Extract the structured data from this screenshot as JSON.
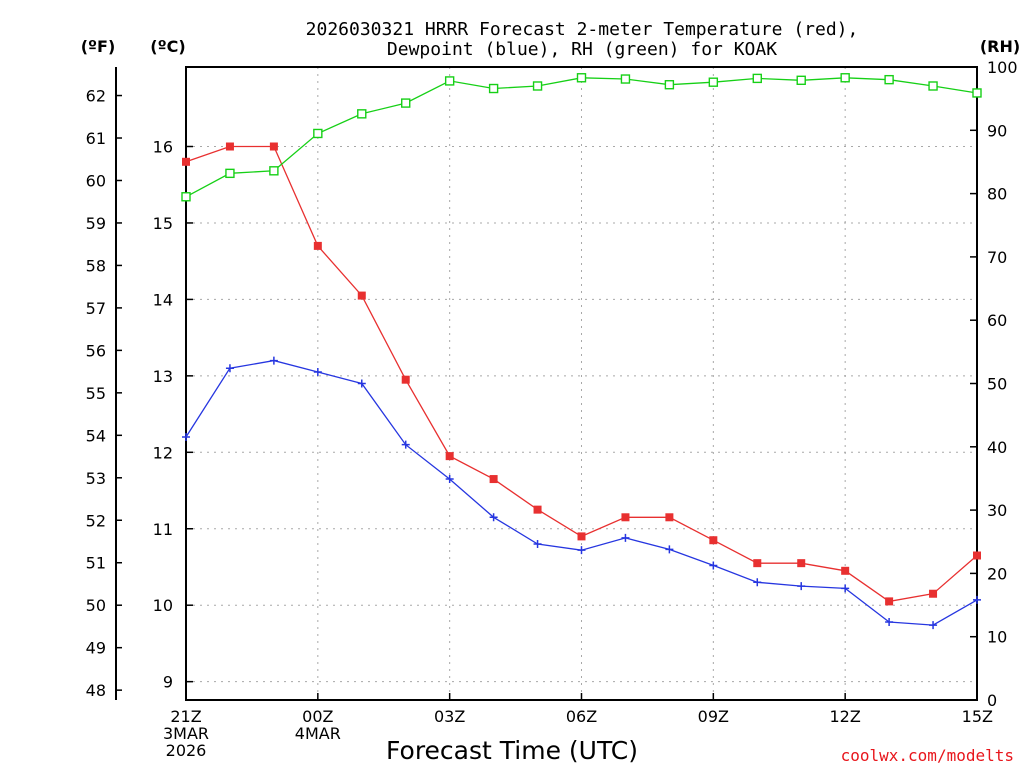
{
  "chart_data": {
    "type": "line",
    "title_line1": "2026030321 HRRR Forecast 2-meter Temperature (red),",
    "title_line2": "Dewpoint (blue), RH (green) for KOAK",
    "xlabel": "Forecast Time (UTC)",
    "credit": "coolwx.com/modelts",
    "left_outer_unit": "(ºF)",
    "left_inner_unit": "(ºC)",
    "right_unit": "(RH)",
    "x_range": [
      0,
      18
    ],
    "celsius_range": [
      8.76,
      17.04
    ],
    "rh_range": [
      0,
      100
    ],
    "fahrenheit_ticks": [
      "48",
      "49",
      "50",
      "51",
      "52",
      "53",
      "54",
      "55",
      "56",
      "57",
      "58",
      "59",
      "60",
      "61",
      "62"
    ],
    "celsius_ticks": [
      "9",
      "10",
      "11",
      "12",
      "13",
      "14",
      "15",
      "16"
    ],
    "rh_ticks": [
      "0",
      "10",
      "20",
      "30",
      "40",
      "50",
      "60",
      "70",
      "80",
      "90",
      "100"
    ],
    "x_ticks": [
      {
        "pos": 0,
        "lines": [
          "21Z",
          "3MAR",
          "2026"
        ]
      },
      {
        "pos": 3,
        "lines": [
          "00Z",
          "4MAR"
        ]
      },
      {
        "pos": 6,
        "lines": [
          "03Z"
        ]
      },
      {
        "pos": 9,
        "lines": [
          "06Z"
        ]
      },
      {
        "pos": 12,
        "lines": [
          "09Z"
        ]
      },
      {
        "pos": 15,
        "lines": [
          "12Z"
        ]
      },
      {
        "pos": 18,
        "lines": [
          "15Z"
        ]
      }
    ],
    "series": [
      {
        "name": "Temperature",
        "unit": "C",
        "color": "#e83030",
        "marker": "filled-square",
        "values": [
          15.8,
          16.0,
          16.0,
          14.7,
          14.05,
          12.95,
          11.95,
          11.65,
          11.25,
          10.9,
          11.15,
          11.15,
          10.85,
          10.55,
          10.55,
          10.45,
          10.05,
          10.15,
          10.65
        ]
      },
      {
        "name": "Dewpoint",
        "unit": "C",
        "color": "#2636e0",
        "marker": "plus",
        "values": [
          12.2,
          13.1,
          13.2,
          13.05,
          12.9,
          12.1,
          11.65,
          11.15,
          10.8,
          10.72,
          10.88,
          10.73,
          10.52,
          10.3,
          10.25,
          10.22,
          9.78,
          9.74,
          10.07
        ]
      },
      {
        "name": "RH",
        "unit": "%",
        "color": "#16d016",
        "marker": "open-square",
        "values": [
          79.5,
          83.2,
          83.6,
          89.5,
          92.6,
          94.3,
          97.8,
          96.6,
          97.0,
          98.3,
          98.1,
          97.2,
          97.6,
          98.2,
          97.9,
          98.3,
          98.0,
          97.0,
          95.9
        ]
      }
    ]
  }
}
